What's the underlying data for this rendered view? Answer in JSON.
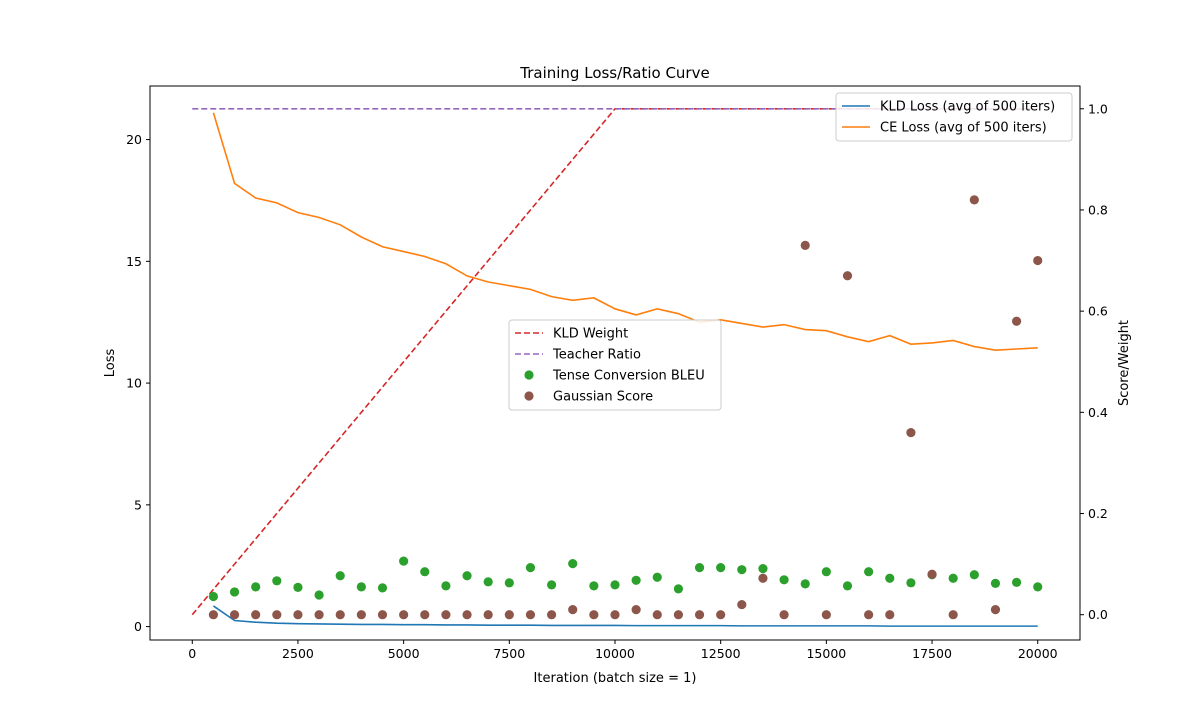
{
  "chart_data": {
    "type": "line",
    "title": "Training Loss/Ratio Curve",
    "xlabel": "Iteration (batch size = 1)",
    "ylabel_left": "Loss",
    "ylabel_right": "Score/Weight",
    "xlim": [
      -1000,
      21000
    ],
    "ylim_left": [
      -0.55,
      22.2
    ],
    "ylim_right": [
      -0.05,
      1.045
    ],
    "x_ticks": [
      0,
      2500,
      5000,
      7500,
      10000,
      12500,
      15000,
      17500,
      20000
    ],
    "y_ticks_left": [
      0,
      5,
      10,
      15,
      20
    ],
    "y_ticks_right": [
      0.0,
      0.2,
      0.4,
      0.6,
      0.8,
      1.0
    ],
    "grid": false,
    "legend_loss_placement": "top-right",
    "legend_ratio_placement": "center",
    "series_left": [
      {
        "name": "KLD Loss (avg of 500 iters)",
        "style": "solid",
        "color": "#1f77b4",
        "x": [
          500,
          1000,
          1500,
          2000,
          2500,
          3000,
          3500,
          4000,
          4500,
          5000,
          5500,
          6000,
          6500,
          7000,
          7500,
          8000,
          8500,
          9000,
          9500,
          10000,
          10500,
          11000,
          11500,
          12000,
          12500,
          13000,
          13500,
          14000,
          14500,
          15000,
          15500,
          16000,
          16500,
          17000,
          17500,
          18000,
          18500,
          19000,
          19500,
          20000
        ],
        "y": [
          0.85,
          0.25,
          0.18,
          0.14,
          0.12,
          0.11,
          0.1,
          0.09,
          0.09,
          0.08,
          0.08,
          0.07,
          0.07,
          0.06,
          0.06,
          0.06,
          0.05,
          0.05,
          0.05,
          0.05,
          0.04,
          0.04,
          0.04,
          0.04,
          0.04,
          0.03,
          0.03,
          0.03,
          0.03,
          0.03,
          0.03,
          0.03,
          0.02,
          0.02,
          0.02,
          0.02,
          0.02,
          0.02,
          0.02,
          0.02
        ]
      },
      {
        "name": "CE Loss (avg of 500 iters)",
        "style": "solid",
        "color": "#ff7f0e",
        "x": [
          500,
          1000,
          1500,
          2000,
          2500,
          3000,
          3500,
          4000,
          4500,
          5000,
          5500,
          6000,
          6500,
          7000,
          7500,
          8000,
          8500,
          9000,
          9500,
          10000,
          10500,
          11000,
          11500,
          12000,
          12500,
          13000,
          13500,
          14000,
          14500,
          15000,
          15500,
          16000,
          16500,
          17000,
          17500,
          18000,
          18500,
          19000,
          19500,
          20000
        ],
        "y": [
          21.1,
          18.2,
          17.6,
          17.4,
          17.0,
          16.8,
          16.5,
          16.0,
          15.6,
          15.4,
          15.2,
          14.9,
          14.4,
          14.15,
          14.0,
          13.85,
          13.55,
          13.4,
          13.5,
          13.05,
          12.8,
          13.05,
          12.85,
          12.5,
          12.6,
          12.45,
          12.3,
          12.4,
          12.2,
          12.15,
          11.9,
          11.7,
          11.95,
          11.6,
          11.65,
          11.75,
          11.5,
          11.35,
          11.4,
          11.45
        ]
      }
    ],
    "series_right": [
      {
        "name": "KLD Weight",
        "style": "dashed",
        "color": "#d62728",
        "x": [
          0,
          10000,
          20000
        ],
        "y": [
          0.0,
          1.0,
          1.0
        ]
      },
      {
        "name": "Teacher Ratio",
        "style": "dashed",
        "color": "#9467bd",
        "x": [
          0,
          20000
        ],
        "y": [
          1.0,
          1.0
        ]
      },
      {
        "name": "Tense Conversion BLEU",
        "style": "scatter",
        "color": "#2ca02c",
        "x": [
          500,
          1000,
          1500,
          2000,
          2500,
          3000,
          3500,
          4000,
          4500,
          5000,
          5500,
          6000,
          6500,
          7000,
          7500,
          8000,
          8500,
          9000,
          9500,
          10000,
          10500,
          11000,
          11500,
          12000,
          12500,
          13000,
          13500,
          14000,
          14500,
          15000,
          15500,
          16000,
          16500,
          17000,
          17500,
          18000,
          18500,
          19000,
          19500,
          20000
        ],
        "y": [
          0.036,
          0.045,
          0.055,
          0.067,
          0.054,
          0.039,
          0.077,
          0.055,
          0.053,
          0.106,
          0.085,
          0.057,
          0.077,
          0.065,
          0.063,
          0.093,
          0.059,
          0.101,
          0.057,
          0.059,
          0.068,
          0.074,
          0.051,
          0.093,
          0.093,
          0.089,
          0.091,
          0.069,
          0.061,
          0.085,
          0.057,
          0.085,
          0.072,
          0.063,
          0.079,
          0.072,
          0.079,
          0.062,
          0.064,
          0.055
        ]
      },
      {
        "name": "Gaussian Score",
        "style": "scatter",
        "color": "#8c564b",
        "x": [
          500,
          1000,
          1500,
          2000,
          2500,
          3000,
          3500,
          4000,
          4500,
          5000,
          5500,
          6000,
          6500,
          7000,
          7500,
          8000,
          8500,
          9000,
          9500,
          10000,
          10500,
          11000,
          11500,
          12000,
          12500,
          13000,
          13500,
          14000,
          14500,
          15000,
          15500,
          16000,
          16500,
          17000,
          17500,
          18000,
          18500,
          19000,
          19500,
          20000
        ],
        "y": [
          0.0,
          0.0,
          0.0,
          0.0,
          0.0,
          0.0,
          0.0,
          0.0,
          0.0,
          0.0,
          0.0,
          0.0,
          0.0,
          0.0,
          0.0,
          0.0,
          0.0,
          0.01,
          0.0,
          0.0,
          0.01,
          0.0,
          0.0,
          0.0,
          0.0,
          0.02,
          0.072,
          0.0,
          0.73,
          0.0,
          0.67,
          0.0,
          0.0,
          0.36,
          0.08,
          0.0,
          0.82,
          0.01,
          0.58,
          0.7
        ]
      }
    ]
  }
}
